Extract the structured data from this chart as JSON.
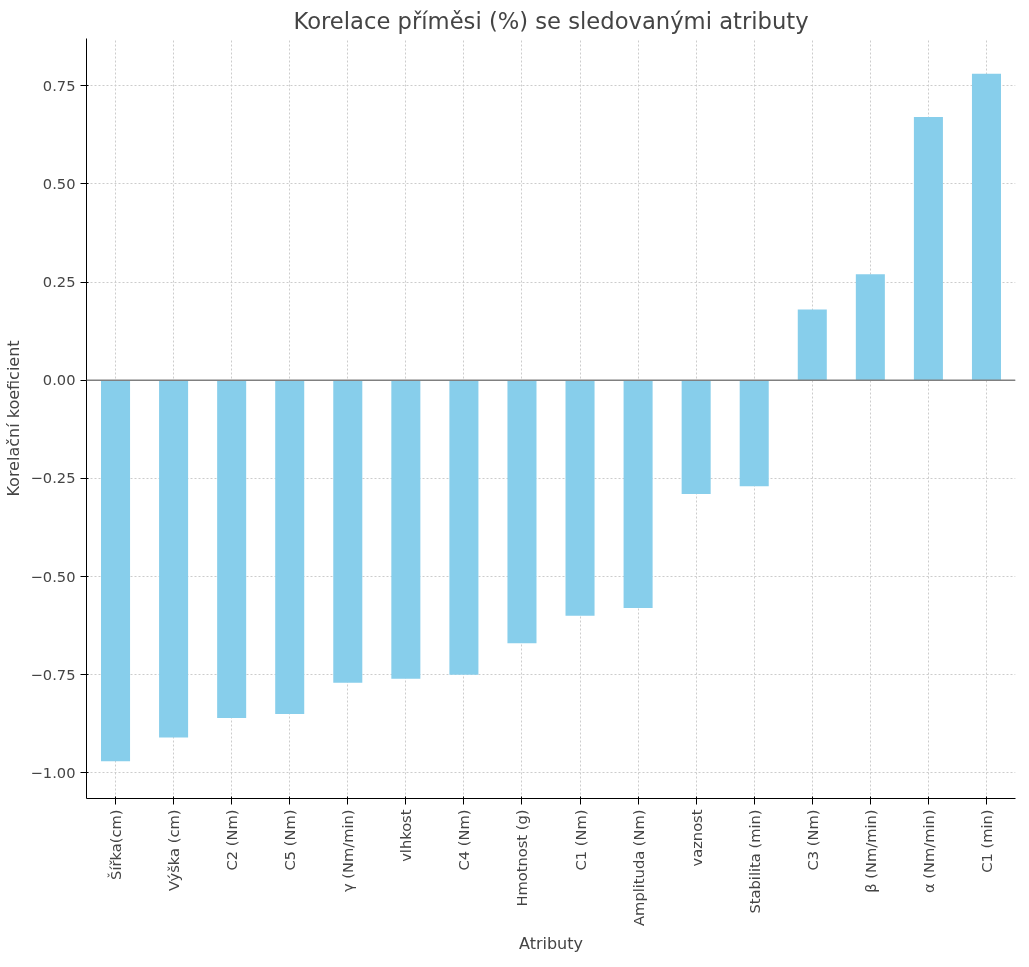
{
  "chart_data": {
    "type": "bar",
    "title": "Korelace příměsi (%) se sledovanými atributy",
    "xlabel": "Atributy",
    "ylabel": "Korelační koeficient",
    "categories": [
      "Šířka(cm)",
      "Výška (cm)",
      "C2 (Nm)",
      "C5 (Nm)",
      "γ (Nm/min)",
      "vlhkost",
      "C4 (Nm)",
      "Hmotnost (g)",
      "C1 (Nm)",
      "Amplituda (Nm)",
      "vaznost",
      "Stabilita (min)",
      "C3 (Nm)",
      "β (Nm/min)",
      "α (Nm/min)",
      "C1 (min)"
    ],
    "values": [
      -0.97,
      -0.91,
      -0.86,
      -0.85,
      -0.77,
      -0.76,
      -0.75,
      -0.67,
      -0.6,
      -0.58,
      -0.29,
      -0.27,
      0.18,
      0.27,
      0.67,
      0.78
    ],
    "color": "#87ceeb",
    "ylim": [
      -1.065,
      0.87
    ],
    "yticks": [
      {
        "value": -1,
        "label": "−1.00"
      },
      {
        "value": -0.75,
        "label": "−0.75"
      },
      {
        "value": -0.5,
        "label": "−0.50"
      },
      {
        "value": -0.25,
        "label": "−0.25"
      },
      {
        "value": 0,
        "label": "0.00"
      },
      {
        "value": 0.25,
        "label": "0.25"
      },
      {
        "value": 0.5,
        "label": "0.50"
      },
      {
        "value": 0.75,
        "label": "0.75"
      }
    ],
    "grid": true,
    "ref_lines": [
      {
        "axis": "y",
        "value": 0,
        "color": "#808080"
      }
    ]
  }
}
